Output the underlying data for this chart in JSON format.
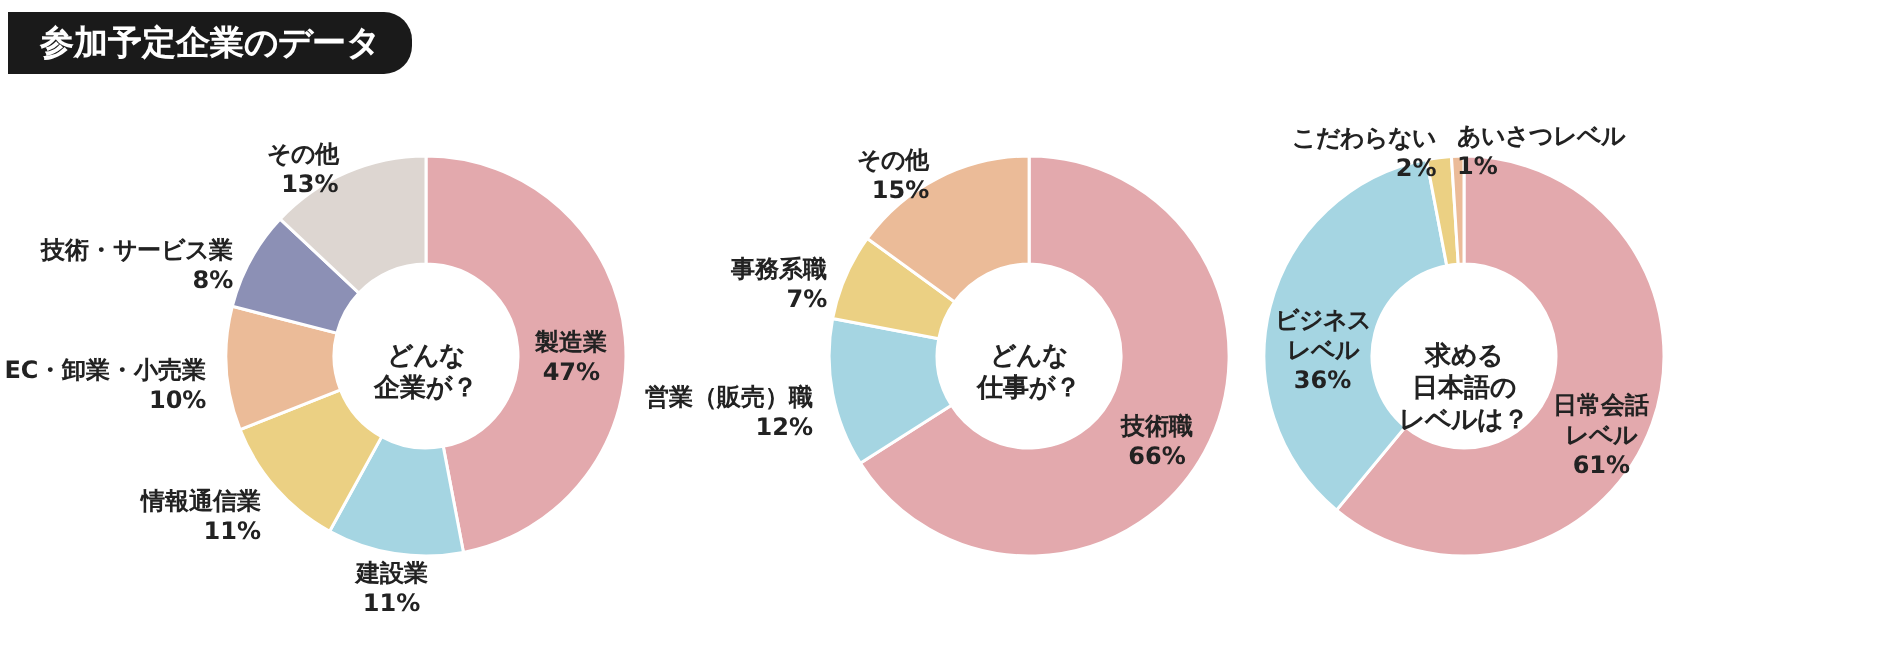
{
  "chart_data": [
    {
      "type": "donut",
      "title": "参加予定企業のデータ",
      "annotations": [
        "どんな",
        "企業が？"
      ],
      "categories": [
        "製造業",
        "建設業",
        "情報通信業",
        "EC・卸業・小売業",
        "技術・サービス業",
        "その他"
      ],
      "values": [
        47,
        11,
        11,
        10,
        8,
        13
      ],
      "value_labels": [
        "47%",
        "11%",
        "11%",
        "10%",
        "8%",
        "13%"
      ],
      "colors": [
        "#e3a9ad",
        "#a5d5e2",
        "#ebd083",
        "#ebbb98",
        "#8c90b5",
        "#ddd6d1"
      ]
    },
    {
      "type": "donut",
      "annotations": [
        "どんな",
        "仕事が？"
      ],
      "categories": [
        "技術職",
        "営業（販売）職",
        "事務系職",
        "その他"
      ],
      "values": [
        66,
        12,
        7,
        15
      ],
      "value_labels": [
        "66%",
        "12%",
        "7%",
        "15%"
      ],
      "colors": [
        "#e3a9ad",
        "#a5d5e2",
        "#ebd083",
        "#ebbb98"
      ]
    },
    {
      "type": "donut",
      "annotations": [
        "求める",
        "日本語の",
        "レベルは？"
      ],
      "categories": [
        "日常会話レベル",
        "ビジネスレベル",
        "こだわらない",
        "あいさつレベル"
      ],
      "values": [
        61,
        36,
        2,
        1
      ],
      "value_labels": [
        "61%",
        "36%",
        "2%",
        "1%"
      ],
      "colors": [
        "#e3a9ad",
        "#a5d5e2",
        "#ebd083",
        "#ebbb98"
      ]
    }
  ]
}
